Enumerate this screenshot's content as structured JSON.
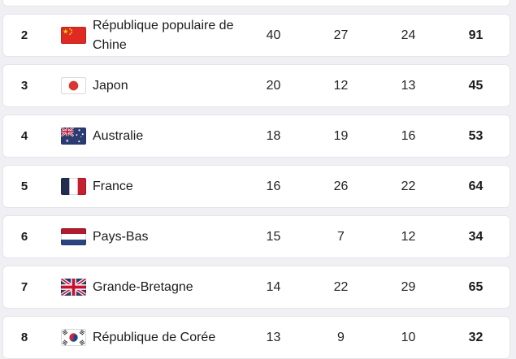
{
  "theme": {
    "page_bg": "#f0eff3",
    "card_bg": "#ffffff",
    "card_border": "#e5e4e8",
    "text": "#1b1b1b",
    "number_text": "#242424"
  },
  "table": {
    "rows": [
      {
        "rank": "2",
        "country": "République populaire de Chine",
        "flag_icon": "china-flag-icon",
        "gold": "40",
        "silver": "27",
        "bronze": "24",
        "total": "91"
      },
      {
        "rank": "3",
        "country": "Japon",
        "flag_icon": "japan-flag-icon",
        "gold": "20",
        "silver": "12",
        "bronze": "13",
        "total": "45"
      },
      {
        "rank": "4",
        "country": "Australie",
        "flag_icon": "australia-flag-icon",
        "gold": "18",
        "silver": "19",
        "bronze": "16",
        "total": "53"
      },
      {
        "rank": "5",
        "country": "France",
        "flag_icon": "france-flag-icon",
        "gold": "16",
        "silver": "26",
        "bronze": "22",
        "total": "64"
      },
      {
        "rank": "6",
        "country": "Pays-Bas",
        "flag_icon": "netherlands-flag-icon",
        "gold": "15",
        "silver": "7",
        "bronze": "12",
        "total": "34"
      },
      {
        "rank": "7",
        "country": "Grande-Bretagne",
        "flag_icon": "great-britain-flag-icon",
        "gold": "14",
        "silver": "22",
        "bronze": "29",
        "total": "65"
      },
      {
        "rank": "8",
        "country": "République de Corée",
        "flag_icon": "south-korea-flag-icon",
        "gold": "13",
        "silver": "9",
        "bronze": "10",
        "total": "32"
      }
    ]
  }
}
